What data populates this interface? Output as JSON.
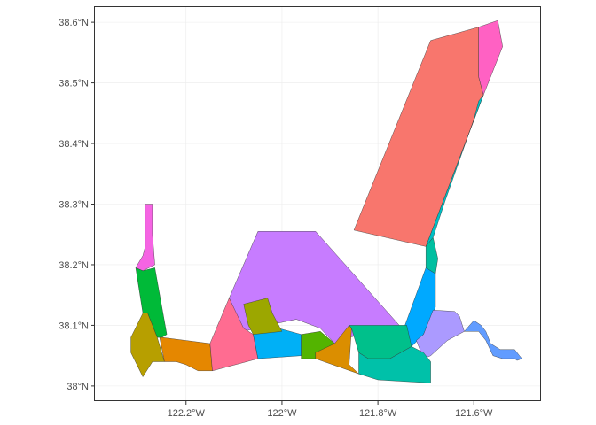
{
  "chart_data": {
    "type": "choropleth-map",
    "title": "",
    "xlabel": "",
    "ylabel": "",
    "grid": true,
    "legend": "none",
    "x_ticks": [
      "122.2°W",
      "122°W",
      "121.8°W",
      "121.6°W"
    ],
    "y_ticks": [
      "38°N",
      "38.1°N",
      "38.2°N",
      "38.3°N",
      "38.4°N",
      "38.5°N",
      "38.6°N"
    ],
    "xlim_deg": [
      -122.39,
      -121.46
    ],
    "ylim_deg": [
      37.975,
      38.625
    ],
    "regions": [
      {
        "color": "#F8766D",
        "lonlat": [
          [
            -121.85,
            38.257
          ],
          [
            -121.69,
            38.57
          ],
          [
            -121.59,
            38.592
          ],
          [
            -121.59,
            38.51
          ],
          [
            -121.58,
            38.48
          ],
          [
            -121.7,
            38.23
          ]
        ]
      },
      {
        "color": "#FF61C3",
        "lonlat": [
          [
            -121.59,
            38.592
          ],
          [
            -121.55,
            38.603
          ],
          [
            -121.54,
            38.56
          ],
          [
            -121.58,
            38.48
          ],
          [
            -121.59,
            38.51
          ]
        ]
      },
      {
        "color": "#00BFC4",
        "lonlat": [
          [
            -121.58,
            38.48
          ],
          [
            -121.59,
            38.47
          ],
          [
            -121.6,
            38.44
          ],
          [
            -121.66,
            38.305
          ],
          [
            -121.685,
            38.245
          ],
          [
            -121.7,
            38.23
          ]
        ]
      },
      {
        "color": "#00BFA0",
        "lonlat": [
          [
            -121.7,
            38.23
          ],
          [
            -121.685,
            38.245
          ],
          [
            -121.675,
            38.21
          ],
          [
            -121.68,
            38.185
          ],
          [
            -121.7,
            38.195
          ]
        ]
      },
      {
        "color": "#00A9FF",
        "lonlat": [
          [
            -121.68,
            38.185
          ],
          [
            -121.7,
            38.195
          ],
          [
            -121.755,
            38.075
          ],
          [
            -121.73,
            38.065
          ],
          [
            -121.705,
            38.085
          ],
          [
            -121.68,
            38.13
          ]
        ]
      },
      {
        "color": "#C77CFF",
        "lonlat": [
          [
            -122.05,
            38.255
          ],
          [
            -121.93,
            38.255
          ],
          [
            -121.75,
            38.095
          ],
          [
            -121.82,
            38.088
          ],
          [
            -121.87,
            38.078
          ],
          [
            -121.89,
            38.07
          ],
          [
            -121.92,
            38.095
          ],
          [
            -121.97,
            38.11
          ],
          [
            -122.03,
            38.1
          ],
          [
            -122.08,
            38.09
          ],
          [
            -122.11,
            38.145
          ]
        ]
      },
      {
        "color": "#AB9AFF",
        "lonlat": [
          [
            -121.705,
            38.085
          ],
          [
            -121.685,
            38.125
          ],
          [
            -121.64,
            38.123
          ],
          [
            -121.63,
            38.115
          ],
          [
            -121.62,
            38.09
          ],
          [
            -121.655,
            38.075
          ],
          [
            -121.69,
            38.05
          ],
          [
            -121.705,
            38.045
          ],
          [
            -121.72,
            38.075
          ]
        ]
      },
      {
        "color": "#619CFF",
        "lonlat": [
          [
            -121.62,
            38.09
          ],
          [
            -121.6,
            38.108
          ],
          [
            -121.585,
            38.1
          ],
          [
            -121.575,
            38.09
          ],
          [
            -121.565,
            38.07
          ],
          [
            -121.545,
            38.06
          ],
          [
            -121.515,
            38.06
          ],
          [
            -121.505,
            38.05
          ],
          [
            -121.5,
            38.045
          ],
          [
            -121.51,
            38.042
          ],
          [
            -121.515,
            38.045
          ],
          [
            -121.54,
            38.045
          ],
          [
            -121.56,
            38.05
          ],
          [
            -121.575,
            38.075
          ],
          [
            -121.59,
            38.09
          ]
        ]
      },
      {
        "color": "#F564E3",
        "lonlat": [
          [
            -122.27,
            38.3
          ],
          [
            -122.285,
            38.3
          ],
          [
            -122.285,
            38.23
          ],
          [
            -122.29,
            38.215
          ],
          [
            -122.305,
            38.195
          ],
          [
            -122.29,
            38.19
          ],
          [
            -122.265,
            38.2
          ],
          [
            -122.27,
            38.25
          ]
        ]
      },
      {
        "color": "#00BA38",
        "lonlat": [
          [
            -122.305,
            38.195
          ],
          [
            -122.29,
            38.19
          ],
          [
            -122.265,
            38.195
          ],
          [
            -122.24,
            38.085
          ],
          [
            -122.25,
            38.08
          ],
          [
            -122.26,
            38.08
          ],
          [
            -122.28,
            38.12
          ],
          [
            -122.29,
            38.12
          ]
        ]
      },
      {
        "color": "#B79F00",
        "lonlat": [
          [
            -122.29,
            38.12
          ],
          [
            -122.315,
            38.08
          ],
          [
            -122.315,
            38.055
          ],
          [
            -122.29,
            38.015
          ],
          [
            -122.27,
            38.04
          ],
          [
            -122.245,
            38.04
          ],
          [
            -122.26,
            38.08
          ],
          [
            -122.28,
            38.12
          ]
        ]
      },
      {
        "color": "#E58700",
        "lonlat": [
          [
            -122.255,
            38.08
          ],
          [
            -122.25,
            38.08
          ],
          [
            -122.15,
            38.07
          ],
          [
            -122.145,
            38.025
          ],
          [
            -122.175,
            38.025
          ],
          [
            -122.2,
            38.035
          ],
          [
            -122.22,
            38.04
          ],
          [
            -122.245,
            38.04
          ]
        ]
      },
      {
        "color": "#FF6C91",
        "lonlat": [
          [
            -122.11,
            38.145
          ],
          [
            -122.15,
            38.07
          ],
          [
            -122.145,
            38.025
          ],
          [
            -122.05,
            38.045
          ],
          [
            -122.06,
            38.085
          ],
          [
            -122.08,
            38.095
          ]
        ]
      },
      {
        "color": "#00B0F6",
        "lonlat": [
          [
            -122.06,
            38.085
          ],
          [
            -122.05,
            38.045
          ],
          [
            -121.96,
            38.05
          ],
          [
            -121.96,
            38.085
          ],
          [
            -122.03,
            38.1
          ]
        ]
      },
      {
        "color": "#9CA700",
        "lonlat": [
          [
            -122.07,
            38.1
          ],
          [
            -122.08,
            38.135
          ],
          [
            -122.03,
            38.145
          ],
          [
            -122.02,
            38.12
          ],
          [
            -122.0,
            38.09
          ],
          [
            -122.06,
            38.085
          ]
        ]
      },
      {
        "color": "#53B400",
        "lonlat": [
          [
            -121.96,
            38.085
          ],
          [
            -121.96,
            38.045
          ],
          [
            -121.93,
            38.045
          ],
          [
            -121.93,
            38.055
          ],
          [
            -121.88,
            38.065
          ],
          [
            -121.89,
            38.07
          ],
          [
            -121.92,
            38.09
          ]
        ]
      },
      {
        "color": "#DB8E00",
        "lonlat": [
          [
            -121.93,
            38.055
          ],
          [
            -121.93,
            38.045
          ],
          [
            -121.84,
            38.02
          ],
          [
            -121.86,
            38.035
          ],
          [
            -121.855,
            38.095
          ],
          [
            -121.86,
            38.1
          ],
          [
            -121.89,
            38.07
          ]
        ]
      },
      {
        "color": "#00C08B",
        "lonlat": [
          [
            -121.86,
            38.1
          ],
          [
            -121.855,
            38.095
          ],
          [
            -121.84,
            38.055
          ],
          [
            -121.82,
            38.045
          ],
          [
            -121.775,
            38.045
          ],
          [
            -121.73,
            38.065
          ],
          [
            -121.74,
            38.1
          ],
          [
            -121.785,
            38.1
          ]
        ]
      },
      {
        "color": "#00C1A9",
        "lonlat": [
          [
            -121.84,
            38.055
          ],
          [
            -121.84,
            38.02
          ],
          [
            -121.8,
            38.01
          ],
          [
            -121.69,
            38.005
          ],
          [
            -121.69,
            38.04
          ],
          [
            -121.705,
            38.055
          ],
          [
            -121.73,
            38.065
          ],
          [
            -121.775,
            38.045
          ],
          [
            -121.82,
            38.045
          ]
        ]
      }
    ]
  }
}
